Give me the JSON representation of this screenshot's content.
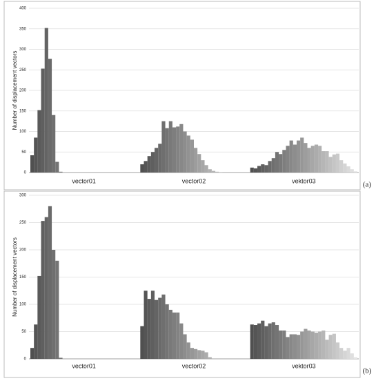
{
  "chart_data": [
    {
      "type": "grouped_histogram",
      "panel_label": "(a)",
      "y_label": "Number of displacement vectors",
      "categories": [
        "vector01",
        "vector02",
        "vektor03"
      ],
      "values": [
        [
          42,
          85,
          152,
          253,
          352,
          277,
          140,
          26,
          2,
          0,
          0,
          0,
          0,
          0,
          0,
          0,
          0,
          0,
          0,
          0,
          0,
          0,
          0,
          0,
          0,
          0,
          0,
          0,
          0,
          0
        ],
        [
          20,
          28,
          40,
          50,
          60,
          70,
          125,
          108,
          125,
          110,
          112,
          118,
          100,
          90,
          80,
          60,
          45,
          30,
          18,
          8,
          4,
          2,
          1,
          0,
          0,
          0,
          0,
          0,
          0,
          0
        ],
        [
          12,
          10,
          16,
          20,
          18,
          28,
          35,
          50,
          45,
          55,
          65,
          78,
          68,
          78,
          85,
          72,
          60,
          65,
          68,
          65,
          52,
          52,
          38,
          44,
          46,
          30,
          22,
          15,
          8,
          3
        ]
      ],
      "color_start": "#505050",
      "color_end": "#e4e4e4",
      "ylim": [
        0,
        400
      ],
      "yticks": [
        0,
        50,
        100,
        150,
        200,
        250,
        300,
        350,
        400
      ],
      "grid": true
    },
    {
      "type": "grouped_histogram",
      "panel_label": "(b)",
      "y_label": "Number of displacement vectors",
      "categories": [
        "vector01",
        "vector02",
        "vektor03"
      ],
      "values": [
        [
          20,
          63,
          152,
          253,
          260,
          280,
          200,
          180,
          2,
          0,
          0,
          0,
          0,
          0,
          0,
          0,
          0,
          0,
          0,
          0,
          0,
          0,
          0,
          0,
          0,
          0,
          0,
          0,
          0,
          0
        ],
        [
          60,
          125,
          110,
          125,
          108,
          112,
          118,
          100,
          90,
          85,
          85,
          65,
          45,
          30,
          20,
          18,
          16,
          15,
          12,
          3,
          0,
          0,
          0,
          0,
          0,
          0,
          0,
          0,
          0,
          0
        ],
        [
          63,
          62,
          65,
          70,
          60,
          65,
          67,
          62,
          52,
          52,
          40,
          45,
          45,
          44,
          50,
          55,
          52,
          50,
          48,
          50,
          52,
          35,
          44,
          46,
          30,
          20,
          15,
          20,
          10,
          3
        ]
      ],
      "color_start": "#505050",
      "color_end": "#e4e4e4",
      "ylim": [
        0,
        300
      ],
      "yticks": [
        0,
        50,
        100,
        150,
        200,
        250,
        300
      ],
      "grid": true
    }
  ]
}
